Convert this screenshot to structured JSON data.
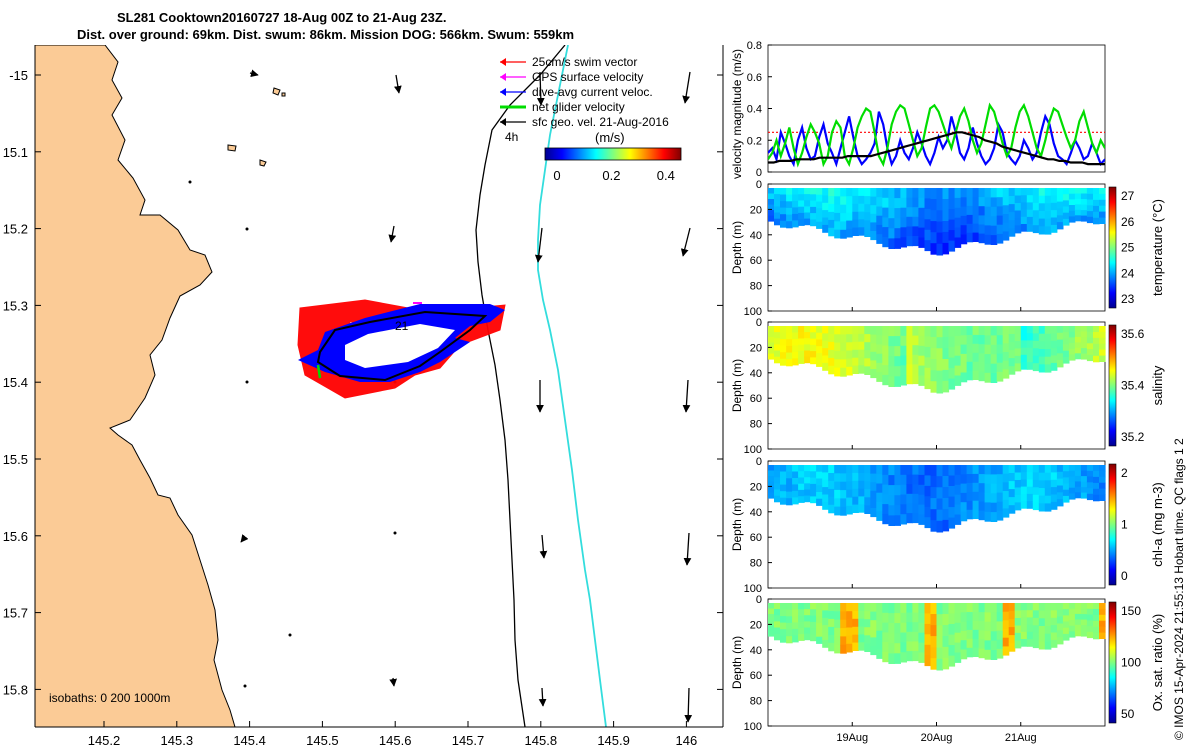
{
  "title": {
    "line1": "SL281 Cooktown20160727 18-Aug 00Z to 21-Aug 23Z.",
    "line2": "Dist. over ground: 69km. Dist. swum: 86km. Mission DOG: 566km. Swum: 559km"
  },
  "map": {
    "lat_ticks": [
      "-15",
      "15.1",
      "15.2",
      "15.3",
      "15.4",
      "15.5",
      "15.6",
      "15.7",
      "15.8"
    ],
    "lon_ticks": [
      "145.2",
      "145.3",
      "145.4",
      "145.5",
      "145.6",
      "145.7",
      "145.8",
      "145.9",
      "146"
    ],
    "legend": [
      {
        "label": "25cm/s swim vector",
        "color": "#ff0000"
      },
      {
        "label": "GPS surface velocity",
        "color": "#ff00ff"
      },
      {
        "label": "dive-avg current veloc.",
        "color": "#0000ff"
      },
      {
        "label": "net glider velocity",
        "color": "#00dd00"
      },
      {
        "label": "sfc geo. vel. 21-Aug-2016",
        "color": "#000000"
      }
    ],
    "duration_label": "4h",
    "colorbar": {
      "unit": "(m/s)",
      "ticks": [
        "0",
        "0.2",
        "0.4"
      ],
      "range": [
        0,
        0.5
      ]
    },
    "isobath_label": "isobaths: 0   200  1000m",
    "glider_label": "21",
    "colors": {
      "land": "#fbcb96",
      "track_black": "#000000",
      "isobath_cyan": "#33dddd"
    }
  },
  "chart_data": [
    {
      "type": "line",
      "title": "",
      "xlabel": "",
      "ylabel": "velocity magnitude (m/s)",
      "ylim": [
        0,
        0.8
      ],
      "xlim": [
        0,
        100
      ],
      "y_ticks": [
        "0",
        "0.2",
        "0.4",
        "0.6",
        "0.8"
      ],
      "series": [
        {
          "name": "blue",
          "color": "#0000ff",
          "values": [
            0.12,
            0.15,
            0.08,
            0.25,
            0.18,
            0.1,
            0.05,
            0.2,
            0.28,
            0.15,
            0.08,
            0.1,
            0.22,
            0.3,
            0.18,
            0.12,
            0.05,
            0.15,
            0.25,
            0.35,
            0.22,
            0.1,
            0.05,
            0.08,
            0.12,
            0.18,
            0.38,
            0.3,
            0.15,
            0.05,
            0.1,
            0.2,
            0.12,
            0.08,
            0.15,
            0.25,
            0.18,
            0.1,
            0.05,
            0.12,
            0.22,
            0.15,
            0.2,
            0.35,
            0.25,
            0.12,
            0.08,
            0.15,
            0.28,
            0.18,
            0.1,
            0.05,
            0.08,
            0.15,
            0.3,
            0.25,
            0.12,
            0.08,
            0.05,
            0.1,
            0.2,
            0.15,
            0.08,
            0.12,
            0.25,
            0.35,
            0.3,
            0.18,
            0.1,
            0.08,
            0.05,
            0.12,
            0.2,
            0.15,
            0.08,
            0.1,
            0.18,
            0.12,
            0.05,
            0.08
          ]
        },
        {
          "name": "green",
          "color": "#00dd00",
          "values": [
            0.08,
            0.12,
            0.2,
            0.1,
            0.18,
            0.28,
            0.15,
            0.05,
            0.12,
            0.22,
            0.3,
            0.25,
            0.18,
            0.05,
            0.1,
            0.25,
            0.32,
            0.28,
            0.1,
            0.05,
            0.15,
            0.28,
            0.35,
            0.4,
            0.38,
            0.25,
            0.1,
            0.05,
            0.15,
            0.3,
            0.38,
            0.42,
            0.4,
            0.3,
            0.2,
            0.1,
            0.15,
            0.28,
            0.4,
            0.42,
            0.38,
            0.3,
            0.22,
            0.15,
            0.25,
            0.35,
            0.4,
            0.32,
            0.2,
            0.12,
            0.18,
            0.3,
            0.42,
            0.38,
            0.28,
            0.18,
            0.1,
            0.15,
            0.28,
            0.38,
            0.42,
            0.35,
            0.25,
            0.15,
            0.1,
            0.2,
            0.32,
            0.4,
            0.38,
            0.3,
            0.22,
            0.15,
            0.2,
            0.32,
            0.38,
            0.28,
            0.18,
            0.12,
            0.2,
            0.15
          ]
        },
        {
          "name": "net",
          "color": "#000000",
          "values": [
            0.06,
            0.06,
            0.07,
            0.07,
            0.07,
            0.08,
            0.08,
            0.08,
            0.08,
            0.09,
            0.09,
            0.09,
            0.09,
            0.09,
            0.1,
            0.1,
            0.1,
            0.1,
            0.1,
            0.11,
            0.12,
            0.13,
            0.14,
            0.15,
            0.16,
            0.17,
            0.18,
            0.19,
            0.2,
            0.21,
            0.22,
            0.23,
            0.24,
            0.25,
            0.25,
            0.24,
            0.23,
            0.22,
            0.2,
            0.19,
            0.18,
            0.16,
            0.15,
            0.14,
            0.13,
            0.12,
            0.11,
            0.1,
            0.09,
            0.08,
            0.08,
            0.07,
            0.07,
            0.06,
            0.06,
            0.06,
            0.05,
            0.05,
            0.05,
            0.05
          ]
        }
      ],
      "reference_line": {
        "value": 0.25,
        "color": "#ff0000",
        "style": "dotted"
      }
    },
    {
      "type": "heatmap",
      "title": "",
      "ylabel": "Depth (m)",
      "colorbar_label": "temperature (°C)",
      "colorbar_ticks": [
        "27",
        "26",
        "25",
        "24",
        "23"
      ],
      "ylim": [
        0,
        100
      ],
      "y_ticks": [
        "0",
        "20",
        "40",
        "60",
        "80",
        "100"
      ],
      "x_ticks": [
        "19Aug",
        "20Aug",
        "21Aug"
      ]
    },
    {
      "type": "heatmap",
      "title": "",
      "ylabel": "Depth (m)",
      "colorbar_label": "salinity",
      "colorbar_ticks": [
        "35.6",
        "35.4",
        "35.2"
      ],
      "ylim": [
        0,
        100
      ],
      "y_ticks": [
        "0",
        "20",
        "40",
        "60",
        "80",
        "100"
      ],
      "x_ticks": [
        "19Aug",
        "20Aug",
        "21Aug"
      ]
    },
    {
      "type": "heatmap",
      "title": "",
      "ylabel": "Depth (m)",
      "colorbar_label": "chl-a (mg m-3)",
      "colorbar_ticks": [
        "2",
        "1",
        "0"
      ],
      "ylim": [
        0,
        100
      ],
      "y_ticks": [
        "0",
        "20",
        "40",
        "60",
        "80",
        "100"
      ],
      "x_ticks": [
        "19Aug",
        "20Aug",
        "21Aug"
      ]
    },
    {
      "type": "heatmap",
      "title": "",
      "ylabel": "Depth (m)",
      "colorbar_label": "Ox. sat. ratio (%)",
      "colorbar_ticks": [
        "150",
        "100",
        "50"
      ],
      "ylim": [
        0,
        100
      ],
      "y_ticks": [
        "0",
        "20",
        "40",
        "60",
        "80",
        "100"
      ],
      "x_ticks": [
        "19Aug",
        "20Aug",
        "21Aug"
      ]
    }
  ],
  "footer": {
    "qc_note": "© IMOS 15-Apr-2024 21:55:13 Hobart time. QC flags 1  2"
  }
}
